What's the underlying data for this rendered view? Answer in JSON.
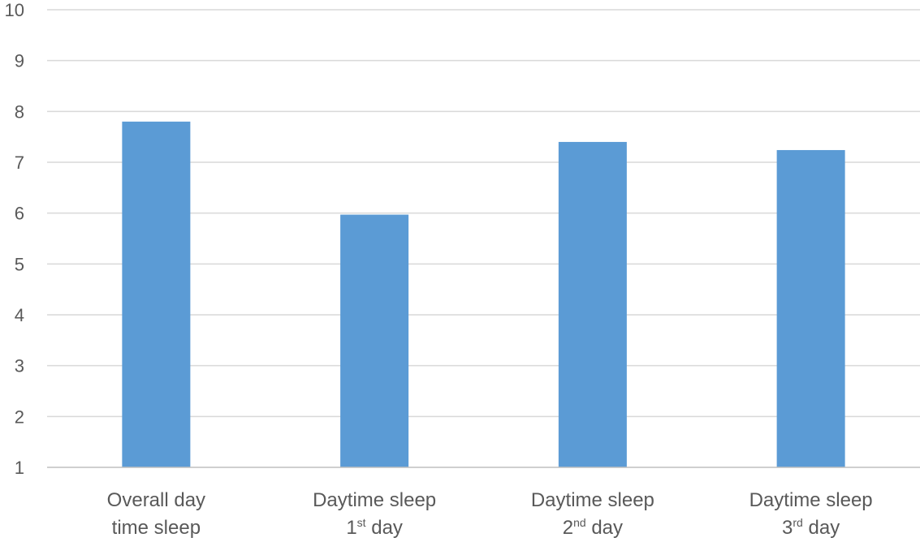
{
  "chart_data": {
    "type": "bar",
    "categories": [
      {
        "lines": [
          {
            "text": "Overall day"
          },
          {
            "text": "time sleep"
          }
        ]
      },
      {
        "lines": [
          {
            "text": "Daytime sleep"
          },
          {
            "text": "1",
            "sup": "st",
            "rest": " day"
          }
        ]
      },
      {
        "lines": [
          {
            "text": "Daytime sleep"
          },
          {
            "text": "2",
            "sup": "nd",
            "rest": " day"
          }
        ]
      },
      {
        "lines": [
          {
            "text": "Daytime sleep"
          },
          {
            "text": "3",
            "sup": "rd",
            "rest": " day"
          }
        ]
      }
    ],
    "values": [
      7.8,
      5.97,
      7.4,
      7.24
    ],
    "ylim": [
      1,
      10
    ],
    "yticks": [
      "1",
      "2",
      "3",
      "4",
      "5",
      "6",
      "7",
      "8",
      "9",
      "10"
    ],
    "bar_color": "#5b9bd5",
    "grid": true,
    "title": "",
    "xlabel": "",
    "ylabel": ""
  }
}
